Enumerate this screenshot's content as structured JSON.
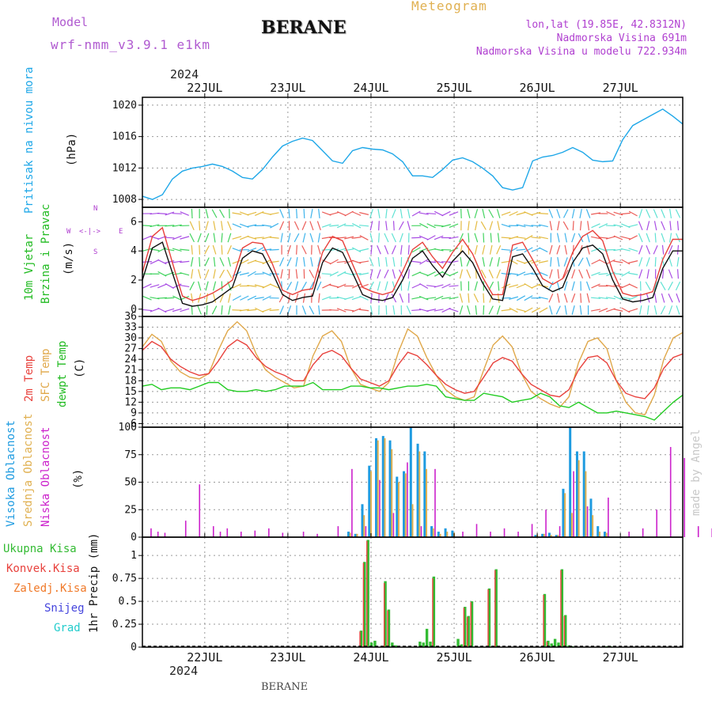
{
  "header": {
    "model_label": "Model",
    "model_name": "wrf-nmm_v3.9.1 e1km",
    "station_title": "BERANE",
    "meteogram_label": "Meteogram",
    "location_line": "lon,lat (19.85E, 42.8312N)",
    "elevation_line": "Nadmorska Visina 691m",
    "model_elevation_line": "Nadmorska Visina u modelu 722.934m",
    "year_top": "2024",
    "year_bottom": "2024",
    "footer_station": "BERANE",
    "watermark": "made by Angel"
  },
  "colors": {
    "pressure": "#1ea7e8",
    "temp2m": "#e8413c",
    "sfc_temp": "#e0a84a",
    "dewpoint": "#22cc22",
    "cloud_high": "#1e9be0",
    "cloud_mid": "#e0b050",
    "cloud_low": "#cc22cc",
    "precip_total": "#33bb33",
    "precip_conv": "#e8413c",
    "precip_frozen": "#f07a2a",
    "snow": "#4444dd",
    "hail": "#22cccc"
  },
  "chart_data": [
    {
      "type": "line",
      "name": "pressure",
      "ylabel_left": "Pritisak na nivou mora",
      "unit": "(hPa)",
      "ylim": [
        1007,
        1021
      ],
      "yticks": [
        "1008",
        "1012",
        "1016",
        "1020"
      ],
      "x_day_labels": [
        "22JUL",
        "23JUL",
        "24JUL",
        "25JUL",
        "26JUL",
        "27JUL"
      ],
      "x_start": "2024-07-21 06:00",
      "x_end": "2024-07-27 12:00",
      "step_hours": 3,
      "values": [
        1008.4,
        1008.0,
        1008.6,
        1010.6,
        1011.6,
        1012.0,
        1012.2,
        1012.5,
        1012.2,
        1011.6,
        1010.8,
        1010.6,
        1011.8,
        1013.4,
        1014.8,
        1015.4,
        1015.8,
        1015.5,
        1014.2,
        1012.9,
        1012.6,
        1014.2,
        1014.6,
        1014.4,
        1014.3,
        1013.8,
        1012.8,
        1011.0,
        1011.0,
        1010.8,
        1011.8,
        1013.0,
        1013.3,
        1012.8,
        1012.0,
        1011.0,
        1009.5,
        1009.2,
        1009.5,
        1012.9,
        1013.4,
        1013.6,
        1014.0,
        1014.6,
        1014.0,
        1013.0,
        1012.8,
        1012.9,
        1015.6,
        1017.4,
        1018.1,
        1018.8,
        1019.5,
        1018.6,
        1017.6
      ]
    },
    {
      "type": "line",
      "name": "wind",
      "ylabel_left": "10m Vjetar",
      "ylabel_left2": "Brzina i Pravac",
      "unit": "(m/s)",
      "compass": [
        "N",
        "W",
        "E",
        "S"
      ],
      "ylim": [
        -0.5,
        7
      ],
      "yticks": [
        "0",
        "2",
        "4",
        "6"
      ],
      "series": [
        {
          "name": "speed",
          "values": [
            2.0,
            4.2,
            4.6,
            2.5,
            0.4,
            0.2,
            0.3,
            0.5,
            1.0,
            1.5,
            3.5,
            4.0,
            3.8,
            2.5,
            1.0,
            0.6,
            0.8,
            0.9,
            3.2,
            4.2,
            3.9,
            2.5,
            1.0,
            0.7,
            0.6,
            0.8,
            2.0,
            3.5,
            4.0,
            3.0,
            2.2,
            3.3,
            4.0,
            3.2,
            1.8,
            0.7,
            0.6,
            3.6,
            3.8,
            2.8,
            1.6,
            1.2,
            1.5,
            3.2,
            4.2,
            4.4,
            3.8,
            2.0,
            0.7,
            0.5,
            0.6,
            0.8,
            2.8,
            4.0,
            4.0
          ]
        },
        {
          "name": "gust",
          "values": [
            2.5,
            5.0,
            5.6,
            3.2,
            0.9,
            0.6,
            0.8,
            1.1,
            1.5,
            2.0,
            4.2,
            4.6,
            4.5,
            3.1,
            1.3,
            1.0,
            1.3,
            1.4,
            3.9,
            5.0,
            4.7,
            3.1,
            1.5,
            1.2,
            1.0,
            1.2,
            2.6,
            4.1,
            4.6,
            3.6,
            2.8,
            3.9,
            4.8,
            3.8,
            2.2,
            1.0,
            1.0,
            4.4,
            4.6,
            3.4,
            2.1,
            1.7,
            2.1,
            3.9,
            5.0,
            5.4,
            4.7,
            2.6,
            1.1,
            0.9,
            1.0,
            1.2,
            3.4,
            4.8,
            4.8
          ]
        }
      ]
    },
    {
      "type": "line",
      "name": "temperature",
      "ylabel_left": "2m Temp",
      "ylabel_left2": "SFC Temp",
      "ylabel_left3": "dewpt Temp",
      "unit": "(C)",
      "ylim": [
        5,
        36
      ],
      "yticks": [
        "6",
        "9",
        "12",
        "15",
        "18",
        "21",
        "24",
        "27",
        "30",
        "33",
        "36"
      ],
      "series": [
        {
          "name": "2m Temp",
          "values": [
            26.5,
            29.0,
            27.5,
            24.0,
            22.0,
            20.5,
            19.5,
            20.0,
            23.5,
            27.5,
            29.5,
            28.0,
            24.5,
            22.0,
            20.5,
            19.5,
            18.0,
            18.0,
            22.5,
            25.5,
            26.5,
            25.0,
            21.5,
            18.5,
            17.5,
            16.5,
            18.0,
            22.5,
            26.0,
            25.0,
            22.5,
            19.5,
            17.0,
            15.5,
            14.5,
            15.0,
            19.0,
            23.0,
            24.5,
            23.5,
            20.0,
            17.0,
            15.5,
            14.0,
            13.5,
            15.5,
            21.0,
            24.5,
            25.0,
            23.0,
            18.0,
            14.5,
            13.5,
            13.0,
            16.0,
            21.5,
            24.5,
            25.5
          ]
        },
        {
          "name": "SFC Temp",
          "values": [
            27.5,
            31.0,
            29.0,
            23.5,
            20.5,
            19.0,
            18.5,
            20.0,
            26.5,
            32.0,
            34.5,
            32.0,
            25.5,
            21.0,
            19.0,
            17.5,
            16.0,
            16.5,
            25.0,
            30.5,
            32.0,
            29.0,
            21.5,
            17.0,
            16.0,
            15.0,
            17.5,
            26.0,
            32.5,
            30.5,
            24.5,
            19.5,
            15.5,
            13.5,
            12.5,
            13.5,
            21.0,
            28.0,
            30.5,
            27.5,
            20.0,
            15.0,
            13.0,
            11.5,
            10.5,
            13.5,
            23.0,
            29.0,
            30.0,
            27.0,
            18.0,
            12.0,
            9.0,
            8.5,
            14.0,
            24.0,
            30.0,
            31.5
          ]
        },
        {
          "name": "dewpt Temp",
          "values": [
            16.5,
            17.0,
            15.5,
            16.0,
            16.0,
            15.5,
            16.5,
            17.5,
            17.5,
            15.5,
            15.0,
            15.0,
            15.5,
            15.0,
            15.5,
            16.5,
            16.5,
            16.5,
            17.5,
            15.5,
            15.5,
            15.5,
            16.5,
            16.5,
            16.0,
            16.0,
            15.5,
            16.0,
            16.5,
            16.5,
            17.0,
            16.5,
            13.5,
            13.0,
            12.5,
            12.5,
            14.5,
            14.0,
            13.5,
            12.0,
            12.5,
            13.0,
            14.5,
            13.5,
            11.0,
            10.5,
            12.0,
            10.5,
            9.0,
            9.0,
            9.5,
            9.0,
            8.5,
            8.0,
            7.0,
            9.5,
            12.0,
            14.0
          ]
        }
      ]
    },
    {
      "type": "bar",
      "name": "clouds",
      "ylabel_left": "Visoka Oblacnost",
      "ylabel_left2": "Srednja Oblacnost",
      "ylabel_left3": "Niska Oblacnost",
      "unit": "(%)",
      "ylim": [
        0,
        100
      ],
      "yticks": [
        "0",
        "25",
        "50",
        "75",
        "100"
      ],
      "series": [
        {
          "name": "Visoka Oblacnost",
          "hours": [
            60,
            62,
            64,
            66,
            68,
            70,
            72,
            74,
            76,
            78,
            80,
            82,
            84,
            86,
            88,
            90,
            114,
            116,
            118,
            120,
            122,
            124,
            126,
            128,
            130,
            132,
            134
          ],
          "values": [
            5,
            3,
            30,
            65,
            90,
            92,
            88,
            55,
            60,
            100,
            85,
            78,
            10,
            5,
            8,
            6,
            2,
            3,
            4,
            2,
            44,
            100,
            78,
            78,
            35,
            10,
            5
          ]
        },
        {
          "name": "Srednja Oblacnost",
          "hours": [
            60,
            62,
            64,
            66,
            68,
            70,
            72,
            74,
            76,
            78,
            80,
            82,
            84,
            86,
            88,
            90,
            114,
            116,
            118,
            120,
            122,
            124,
            126,
            128,
            130,
            132,
            134
          ],
          "values": [
            4,
            3,
            20,
            60,
            88,
            90,
            80,
            50,
            58,
            30,
            78,
            62,
            8,
            3,
            5,
            4,
            2,
            3,
            2,
            2,
            40,
            22,
            70,
            60,
            20,
            5,
            4
          ]
        },
        {
          "name": "Niska Oblacnost",
          "hours": [
            2,
            4,
            6,
            12,
            16,
            20,
            22,
            24,
            28,
            32,
            36,
            40,
            46,
            50,
            56,
            60,
            64,
            68,
            72,
            76,
            80,
            84,
            92,
            96,
            100,
            104,
            108,
            112,
            116,
            120,
            124,
            128,
            134,
            140,
            144,
            148,
            152,
            156,
            160,
            164,
            168,
            172,
            176,
            184,
            188,
            196,
            200,
            208,
            216,
            224,
            232
          ],
          "values": [
            8,
            5,
            4,
            15,
            48,
            10,
            5,
            8,
            5,
            6,
            8,
            4,
            5,
            3,
            10,
            62,
            10,
            52,
            22,
            68,
            10,
            62,
            5,
            12,
            5,
            8,
            5,
            12,
            25,
            10,
            60,
            28,
            36,
            5,
            8,
            25,
            82,
            72,
            10,
            8,
            14,
            20,
            6,
            10,
            22,
            6,
            8,
            4,
            3,
            10,
            8
          ]
        }
      ]
    },
    {
      "type": "bar",
      "name": "precipitation",
      "legend": [
        "Ukupna Kisa",
        "Konvek.Kisa",
        "Zaledj.Kisa",
        "Snijeg",
        "Grad"
      ],
      "ylabel": "1hr Precip (mm)",
      "ylim": [
        0,
        1.2
      ],
      "yticks": [
        "0",
        "0.25",
        "0.5",
        "0.75",
        "1"
      ],
      "series": [
        {
          "name": "Ukupna Kisa",
          "hours": [
            63,
            64,
            65,
            66,
            67,
            70,
            71,
            72,
            73,
            80,
            81,
            82,
            83,
            84,
            91,
            92,
            93,
            94,
            95,
            100,
            102,
            116,
            117,
            118,
            119,
            120,
            121,
            122,
            123,
            124,
            125,
            134,
            135
          ],
          "values": [
            0.18,
            0.93,
            1.17,
            0.05,
            0.07,
            0.72,
            0.41,
            0.05,
            0.02,
            0.06,
            0.05,
            0.2,
            0.06,
            0.77,
            0.09,
            0.03,
            0.44,
            0.34,
            0.5,
            0.64,
            0.85,
            0.58,
            0.07,
            0.04,
            0.09,
            0.05,
            0.85,
            0.35,
            0.02,
            0.01,
            0.01,
            0.01,
            0.01
          ]
        },
        {
          "name": "Konvek.Kisa",
          "hours": [
            63,
            64,
            65,
            70,
            71,
            84,
            93,
            94,
            95,
            100,
            102,
            116,
            117,
            121,
            122
          ],
          "values": [
            0.17,
            0.92,
            1.16,
            0.7,
            0.4,
            0.75,
            0.43,
            0.33,
            0.49,
            0.63,
            0.84,
            0.57,
            0.06,
            0.84,
            0.34
          ]
        }
      ]
    }
  ]
}
